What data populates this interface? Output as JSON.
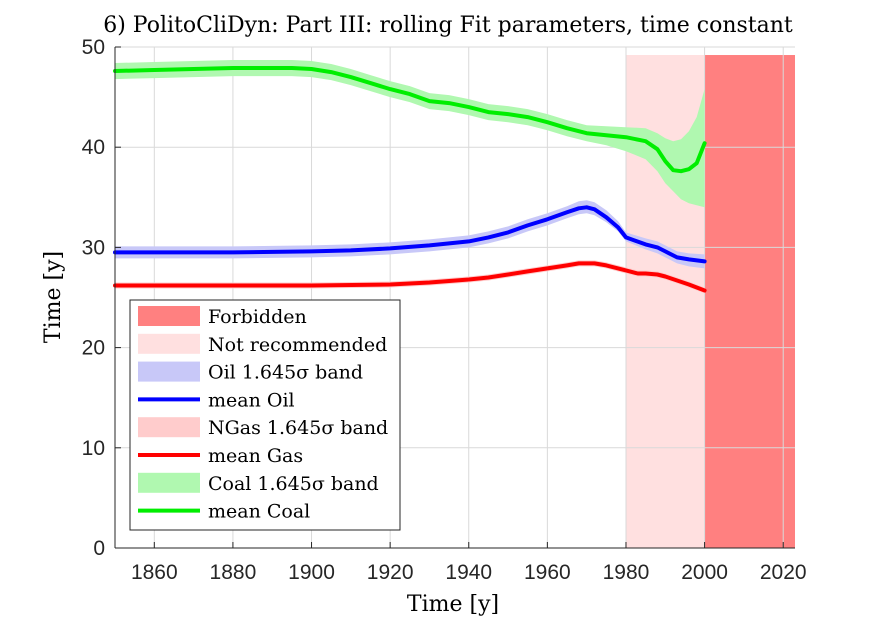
{
  "chart_data": {
    "type": "line",
    "title": "6) PolitoCliDyn: Part III: rolling Fit parameters, time constant",
    "xlabel": "Time [y]",
    "ylabel": "Time [y]",
    "xlim": [
      1850,
      2023
    ],
    "ylim": [
      0,
      50
    ],
    "xticks": [
      1860,
      1880,
      1900,
      1920,
      1940,
      1960,
      1980,
      2000,
      2020
    ],
    "yticks": [
      0,
      10,
      20,
      30,
      40,
      50
    ],
    "grid": true,
    "legend_position": "lower-left",
    "regions": [
      {
        "name": "Not recommended",
        "x": [
          1980,
          2000
        ],
        "color": "#ffe0e0"
      },
      {
        "name": "Forbidden",
        "x": [
          2000,
          2023
        ],
        "color": "#ff8080"
      }
    ],
    "series": [
      {
        "name": "mean Oil",
        "band_name": "Oil 1.645σ band",
        "color": "#0000ff",
        "band_color": "#c8c8f8",
        "x": [
          1850,
          1860,
          1880,
          1900,
          1910,
          1920,
          1930,
          1940,
          1945,
          1950,
          1955,
          1960,
          1965,
          1968,
          1970,
          1972,
          1975,
          1978,
          1980,
          1985,
          1988,
          1990,
          1993,
          1996,
          2000
        ],
        "mean": [
          29.5,
          29.5,
          29.5,
          29.6,
          29.7,
          29.9,
          30.2,
          30.6,
          31.0,
          31.5,
          32.2,
          32.8,
          33.5,
          33.9,
          34.0,
          33.8,
          33.0,
          32.0,
          31.0,
          30.3,
          30.0,
          29.6,
          29.0,
          28.8,
          28.6
        ],
        "lower": [
          28.9,
          28.9,
          28.9,
          29.0,
          29.1,
          29.3,
          29.6,
          30.0,
          30.4,
          30.9,
          31.6,
          32.2,
          32.9,
          33.3,
          33.4,
          33.2,
          32.5,
          31.6,
          30.6,
          29.8,
          29.4,
          29.0,
          28.4,
          28.1,
          27.9
        ],
        "upper": [
          30.1,
          30.1,
          30.1,
          30.2,
          30.3,
          30.5,
          30.8,
          31.2,
          31.6,
          32.1,
          32.8,
          33.4,
          34.1,
          34.6,
          34.7,
          34.5,
          33.7,
          32.6,
          31.5,
          30.9,
          30.6,
          30.2,
          29.6,
          29.4,
          29.3
        ]
      },
      {
        "name": "mean Gas",
        "band_name": "NGas 1.645σ band",
        "color": "#ff0000",
        "band_color": "#ffcccc",
        "x": [
          1850,
          1880,
          1900,
          1920,
          1930,
          1940,
          1945,
          1950,
          1955,
          1960,
          1965,
          1968,
          1970,
          1972,
          1975,
          1980,
          1983,
          1985,
          1988,
          1990,
          1993,
          1996,
          2000
        ],
        "mean": [
          26.2,
          26.2,
          26.2,
          26.3,
          26.5,
          26.8,
          27.0,
          27.3,
          27.6,
          27.9,
          28.2,
          28.4,
          28.4,
          28.4,
          28.2,
          27.7,
          27.4,
          27.4,
          27.3,
          27.1,
          26.7,
          26.3,
          25.7
        ],
        "lower": [
          25.9,
          25.9,
          25.9,
          26.0,
          26.2,
          26.5,
          26.7,
          27.0,
          27.3,
          27.6,
          27.9,
          28.1,
          28.1,
          28.1,
          27.9,
          27.4,
          27.1,
          27.1,
          27.0,
          26.8,
          26.4,
          26.0,
          25.4
        ],
        "upper": [
          26.5,
          26.5,
          26.5,
          26.6,
          26.8,
          27.1,
          27.3,
          27.6,
          27.9,
          28.2,
          28.5,
          28.7,
          28.7,
          28.7,
          28.5,
          28.0,
          27.7,
          27.7,
          27.6,
          27.4,
          27.0,
          26.6,
          26.0
        ]
      },
      {
        "name": "mean Coal",
        "band_name": "Coal 1.645σ band",
        "color": "#00ee00",
        "band_color": "#b0f8b0",
        "x": [
          1850,
          1860,
          1870,
          1880,
          1890,
          1895,
          1900,
          1905,
          1910,
          1915,
          1920,
          1925,
          1930,
          1935,
          1940,
          1945,
          1950,
          1955,
          1960,
          1965,
          1970,
          1975,
          1980,
          1985,
          1988,
          1990,
          1992,
          1994,
          1996,
          1998,
          2000
        ],
        "mean": [
          47.6,
          47.7,
          47.8,
          47.9,
          47.9,
          47.9,
          47.8,
          47.5,
          47.0,
          46.4,
          45.8,
          45.3,
          44.6,
          44.4,
          44.0,
          43.5,
          43.3,
          43.0,
          42.5,
          41.9,
          41.4,
          41.2,
          41.0,
          40.6,
          39.8,
          38.6,
          37.7,
          37.6,
          37.8,
          38.4,
          40.4
        ],
        "lower": [
          46.8,
          46.9,
          47.0,
          47.1,
          47.1,
          47.1,
          47.0,
          46.7,
          46.2,
          45.6,
          45.0,
          44.5,
          43.8,
          43.6,
          43.2,
          42.7,
          42.5,
          42.2,
          41.7,
          41.1,
          40.6,
          40.2,
          39.6,
          38.8,
          37.6,
          36.4,
          35.6,
          34.8,
          34.4,
          34.2,
          34.0
        ],
        "upper": [
          48.4,
          48.5,
          48.6,
          48.7,
          48.7,
          48.7,
          48.6,
          48.3,
          47.8,
          47.2,
          46.6,
          46.1,
          45.4,
          45.2,
          44.8,
          44.3,
          44.1,
          43.8,
          43.3,
          42.7,
          42.2,
          42.1,
          42.0,
          41.9,
          41.4,
          40.9,
          40.6,
          40.8,
          41.6,
          43.0,
          45.8
        ]
      }
    ],
    "legend": [
      {
        "label": "Forbidden",
        "kind": "patch",
        "color": "#ff8080"
      },
      {
        "label": "Not recommended",
        "kind": "patch",
        "color": "#ffe0e0"
      },
      {
        "label": "Oil 1.645σ band",
        "kind": "patch",
        "color": "#c8c8f8"
      },
      {
        "label": "mean Oil",
        "kind": "line",
        "color": "#0000ff"
      },
      {
        "label": "NGas 1.645σ band",
        "kind": "patch",
        "color": "#ffcccc"
      },
      {
        "label": "mean Gas",
        "kind": "line",
        "color": "#ff0000"
      },
      {
        "label": "Coal 1.645σ band",
        "kind": "patch",
        "color": "#b0f8b0"
      },
      {
        "label": "mean Coal",
        "kind": "line",
        "color": "#00ee00"
      }
    ]
  }
}
